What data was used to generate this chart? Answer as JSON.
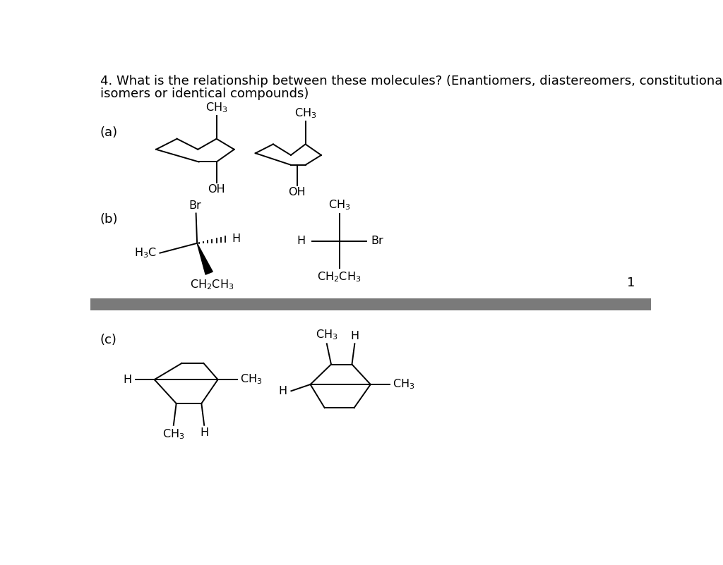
{
  "title_line1": "4. What is the relationship between these molecules? (Enantiomers, diastereomers, constitutional",
  "title_line2": "isomers or identical compounds)",
  "bg_color": "#ffffff",
  "text_color": "#000000",
  "divider_color": "#7a7a7a",
  "page_number": "1",
  "font_size_title": 13.0,
  "font_size_labels": 13,
  "font_size_chem": 11.5
}
